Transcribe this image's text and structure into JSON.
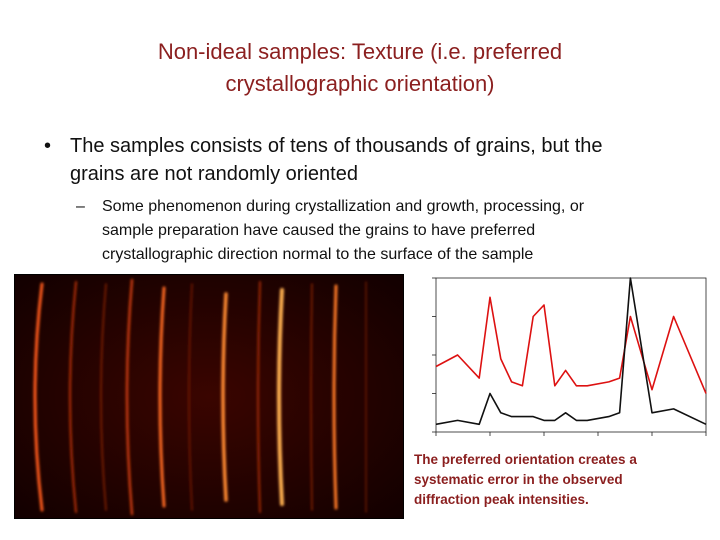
{
  "slide": {
    "title_line1": "Non-ideal samples: Texture (i.e. preferred",
    "title_line2": "crystallographic orientation)",
    "bullet_symbol": "•",
    "bullet_text_line1": "The samples consists of tens of thousands of grains, but the",
    "bullet_text_line2": "grains are not randomly oriented",
    "sub_bullet_symbol": "–",
    "sub_text_line1": "Some phenomenon during crystallization and growth, processing, or",
    "sub_text_line2": "sample preparation have caused the grains to have preferred",
    "sub_text_line3": "crystallographic direction normal to the surface of the sample",
    "caption_line1": "The preferred orientation creates a",
    "caption_line2": "systematic error in the observed",
    "caption_line3": "diffraction peak intensities."
  },
  "colors": {
    "title": "#8b1f1f",
    "caption": "#8b1f1f",
    "random_pattern": "#dd1111",
    "textured_pattern": "#111111"
  },
  "chart_data": {
    "type": "line",
    "x": [
      20,
      22,
      24,
      25,
      26,
      27,
      28,
      29,
      30,
      31,
      32,
      33,
      34,
      36,
      37,
      38,
      40,
      42,
      45
    ],
    "series": [
      {
        "values": [
          17,
          20,
          14,
          35,
          19,
          13,
          12,
          30,
          33,
          12,
          16,
          12,
          12,
          13,
          14,
          30,
          11,
          30,
          10
        ]
      },
      {
        "values": [
          2,
          3,
          2,
          10,
          5,
          4,
          4,
          4,
          3,
          3,
          5,
          3,
          3,
          4,
          5,
          40,
          5,
          6,
          2
        ]
      }
    ],
    "xlim": [
      20,
      45
    ],
    "ylim": [
      0,
      40
    ]
  }
}
